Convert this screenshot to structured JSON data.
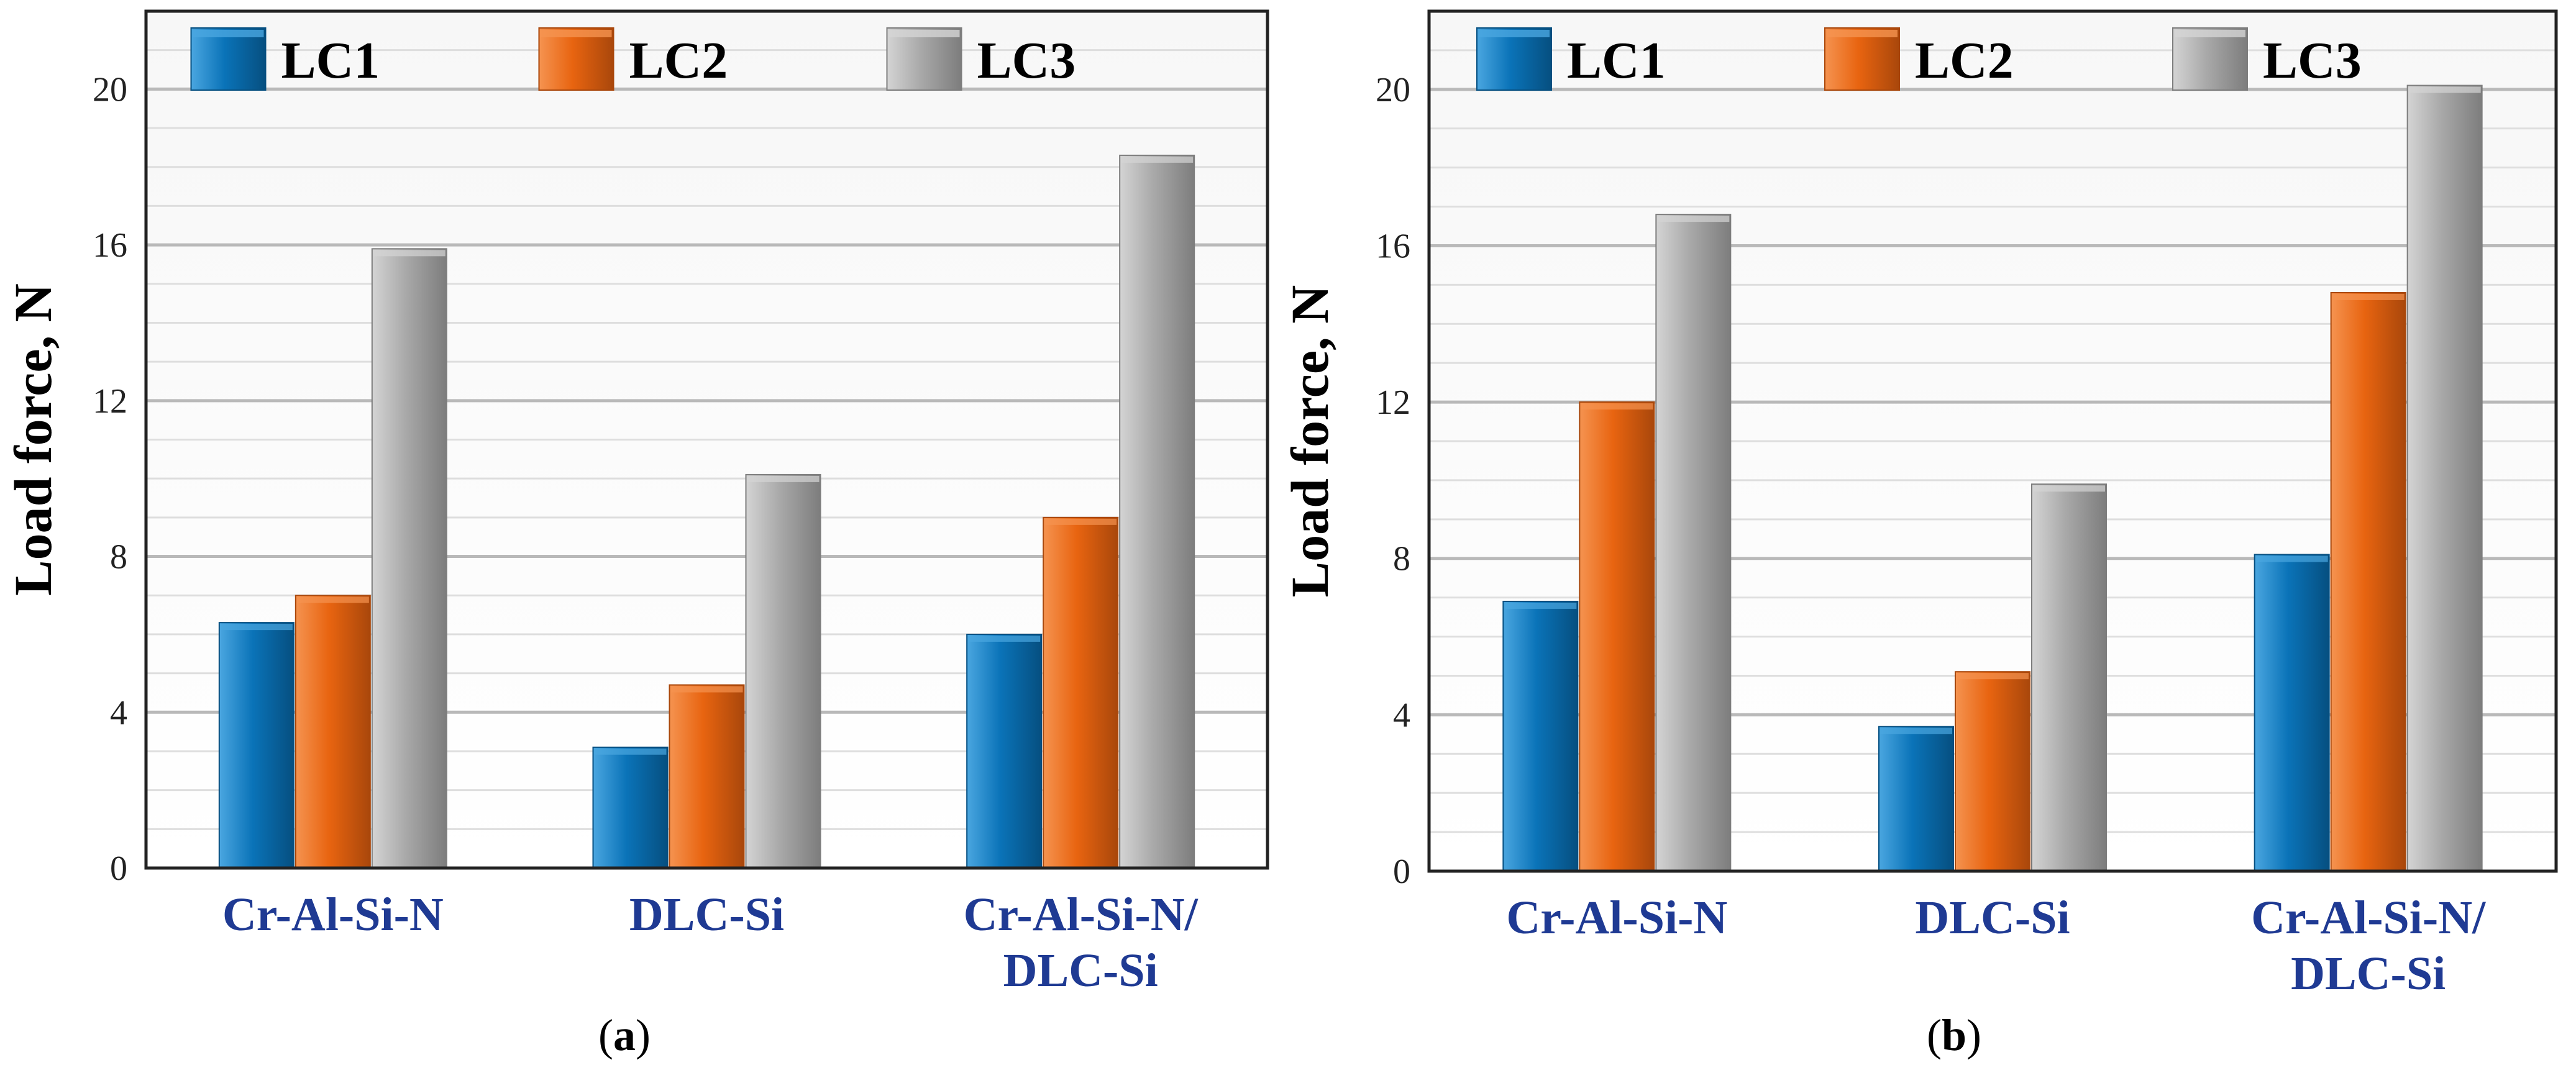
{
  "chart_data": [
    {
      "type": "bar",
      "panel": "a",
      "caption": "(a)",
      "caption_parts": {
        "open": "(",
        "letter": "a",
        "close": ")"
      },
      "categories": [
        [
          "Cr-Al-Si-N"
        ],
        [
          "DLC-Si"
        ],
        [
          "Cr-Al-Si-N/",
          "DLC-Si"
        ]
      ],
      "series": [
        {
          "name": "LC1",
          "values": [
            6.3,
            3.1,
            6.0
          ]
        },
        {
          "name": "LC2",
          "values": [
            7.0,
            4.7,
            9.0
          ]
        },
        {
          "name": "LC3",
          "values": [
            15.9,
            10.1,
            18.3
          ]
        }
      ],
      "ylabel": "Load force, N",
      "ylim": [
        0,
        22
      ],
      "yticks": [
        0,
        4,
        8,
        12,
        16,
        20
      ],
      "minor_step": 1,
      "legend": "top-center",
      "grid": true
    },
    {
      "type": "bar",
      "panel": "b",
      "caption": "(b)",
      "caption_parts": {
        "open": "(",
        "letter": "b",
        "close": ")"
      },
      "categories": [
        [
          "Cr-Al-Si-N"
        ],
        [
          "DLC-Si"
        ],
        [
          "Cr-Al-Si-N/",
          "DLC-Si"
        ]
      ],
      "series": [
        {
          "name": "LC1",
          "values": [
            6.9,
            3.7,
            8.1
          ]
        },
        {
          "name": "LC2",
          "values": [
            12.0,
            5.1,
            14.8
          ]
        },
        {
          "name": "LC3",
          "values": [
            16.8,
            9.9,
            20.1
          ]
        }
      ],
      "ylabel": "Load force, N",
      "ylim": [
        0,
        22
      ],
      "yticks": [
        0,
        4,
        8,
        12,
        16,
        20
      ],
      "minor_step": 1,
      "legend": "top-center",
      "grid": true
    }
  ],
  "colors": {
    "LC1": "#0a73b8",
    "LC2": "#e86410",
    "LC3": "#a9a9a9",
    "LC1_light": "#4aa6e0",
    "LC2_light": "#f59350",
    "LC3_light": "#d4d4d4",
    "LC1_dark": "#064f80",
    "LC2_dark": "#a9470b",
    "LC3_dark": "#7d7d7d",
    "grid_major": "#b9b9b9",
    "grid_minor": "#dedede",
    "plot_bg_top": "#f7f7f7",
    "plot_bg_bottom": "#ffffff",
    "category_text": "#1f3a93"
  }
}
